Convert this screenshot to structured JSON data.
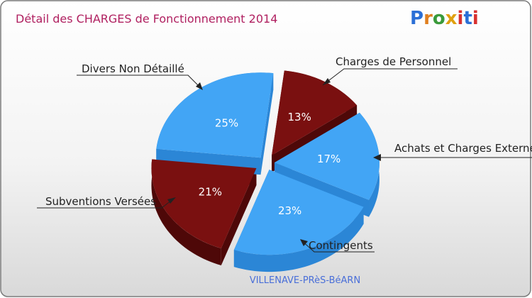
{
  "chart_data": {
    "type": "pie",
    "title": "Détail des CHARGES de Fonctionnement 2014",
    "subtitle": "VILLENAVE-PRèS-BéARN",
    "logo": "Proxiti",
    "slices": [
      {
        "name": "Charges de Personnel",
        "value": 13,
        "label": "13%",
        "color": "#7a1010",
        "side": "#4e0808"
      },
      {
        "name": "Achats et Charges Externes",
        "value": 17,
        "label": "17%",
        "color": "#42a5f5",
        "side": "#2b86d6"
      },
      {
        "name": "Contingents",
        "value": 23,
        "label": "23%",
        "color": "#42a5f5",
        "side": "#2b86d6"
      },
      {
        "name": "Subventions Versées",
        "value": 21,
        "label": "21%",
        "color": "#7a1010",
        "side": "#4e0808"
      },
      {
        "name": "Divers Non Détaillé",
        "value": 25,
        "label": "25%",
        "color": "#42a5f5",
        "side": "#2b86d6"
      }
    ],
    "callout_labels": {
      "personnel": "Charges de Personnel",
      "achats": "Achats et Charges Externes",
      "contingents": "Contingents",
      "subventions": "Subventions Versées",
      "divers": "Divers Non Détaillé"
    },
    "colors": {
      "title": "#b02060",
      "subtitle": "#4a6fd8",
      "border": "#7a7a7a",
      "logo_p": "#2b6fd6",
      "logo_r": "#e08020",
      "logo_o": "#3a9a3a",
      "logo_x": "#e0a010",
      "logo_i": "#d83030"
    }
  }
}
